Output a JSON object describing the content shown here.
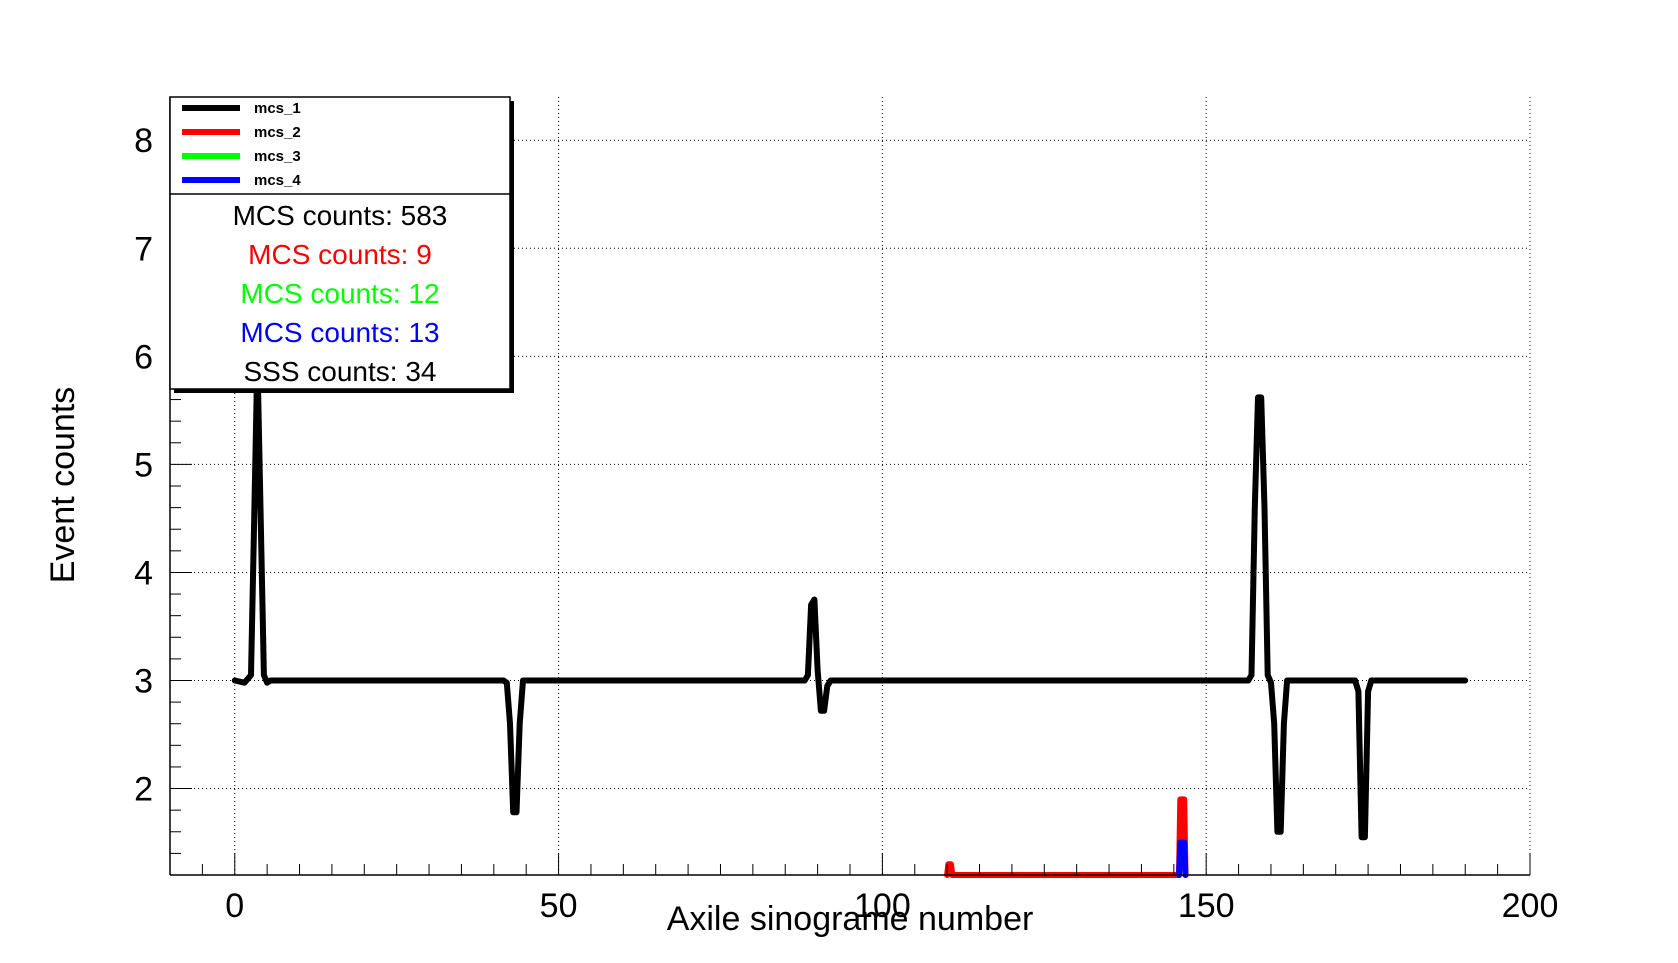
{
  "chart_data": {
    "type": "line",
    "title": "",
    "xlabel": "Axile sinograme number",
    "ylabel": "Event counts",
    "xlim": [
      -10,
      200
    ],
    "ylim": [
      1.2,
      8.4
    ],
    "x_ticks": [
      0,
      50,
      100,
      150,
      200
    ],
    "y_ticks": [
      2,
      3,
      4,
      5,
      6,
      7,
      8
    ],
    "grid": true,
    "legend_position": "top-left",
    "series": [
      {
        "name": "mcs_1",
        "color": "#000000",
        "points": [
          [
            0,
            3.0
          ],
          [
            1.5,
            2.98
          ],
          [
            2.5,
            3.05
          ],
          [
            3,
            4.5
          ],
          [
            3.5,
            6.0
          ],
          [
            4,
            4.5
          ],
          [
            4.5,
            3.05
          ],
          [
            5,
            2.98
          ],
          [
            5.5,
            3.0
          ],
          [
            41.5,
            3.0
          ],
          [
            42,
            2.98
          ],
          [
            42.5,
            2.6
          ],
          [
            43,
            1.78
          ],
          [
            43.5,
            1.78
          ],
          [
            44,
            2.6
          ],
          [
            44.5,
            3.0
          ],
          [
            88,
            3.0
          ],
          [
            88.5,
            3.05
          ],
          [
            89,
            3.7
          ],
          [
            89.5,
            3.75
          ],
          [
            90,
            3.1
          ],
          [
            90.5,
            2.72
          ],
          [
            91,
            2.72
          ],
          [
            91.5,
            2.95
          ],
          [
            92,
            3.0
          ],
          [
            156.5,
            3.0
          ],
          [
            157,
            3.05
          ],
          [
            157.5,
            4.6
          ],
          [
            158,
            5.62
          ],
          [
            158.5,
            5.62
          ],
          [
            159,
            4.6
          ],
          [
            159.5,
            3.05
          ],
          [
            160,
            2.98
          ],
          [
            160.5,
            2.6
          ],
          [
            161,
            1.6
          ],
          [
            161.5,
            1.6
          ],
          [
            162,
            2.6
          ],
          [
            162.5,
            3.0
          ],
          [
            173,
            3.0
          ],
          [
            173.5,
            2.9
          ],
          [
            174,
            1.55
          ],
          [
            174.5,
            1.55
          ],
          [
            175,
            2.9
          ],
          [
            175.5,
            3.0
          ],
          [
            190,
            3.0
          ]
        ]
      },
      {
        "name": "mcs_2",
        "color": "#ff0000",
        "points": [
          [
            110,
            1.2
          ],
          [
            110.2,
            1.3
          ],
          [
            110.6,
            1.3
          ],
          [
            110.8,
            1.2
          ],
          [
            145.8,
            1.2
          ],
          [
            146,
            1.9
          ],
          [
            146.6,
            1.9
          ],
          [
            146.8,
            1.2
          ]
        ]
      },
      {
        "name": "mcs_3",
        "color": "#00ff00",
        "points": []
      },
      {
        "name": "mcs_4",
        "color": "#0000ff",
        "points": [
          [
            145.8,
            1.2
          ],
          [
            146,
            1.5
          ],
          [
            146.6,
            1.5
          ],
          [
            146.8,
            1.2
          ]
        ]
      }
    ],
    "legend_entries": [
      "mcs_1",
      "mcs_2",
      "mcs_3",
      "mcs_4"
    ],
    "stats": [
      {
        "text": "MCS counts: 583",
        "color": "#000000"
      },
      {
        "text": "MCS counts: 9",
        "color": "#ff0000"
      },
      {
        "text": "MCS counts: 12",
        "color": "#00ff00"
      },
      {
        "text": "MCS counts: 13",
        "color": "#0000ff"
      },
      {
        "text": "SSS counts: 34",
        "color": "#000000"
      }
    ]
  }
}
